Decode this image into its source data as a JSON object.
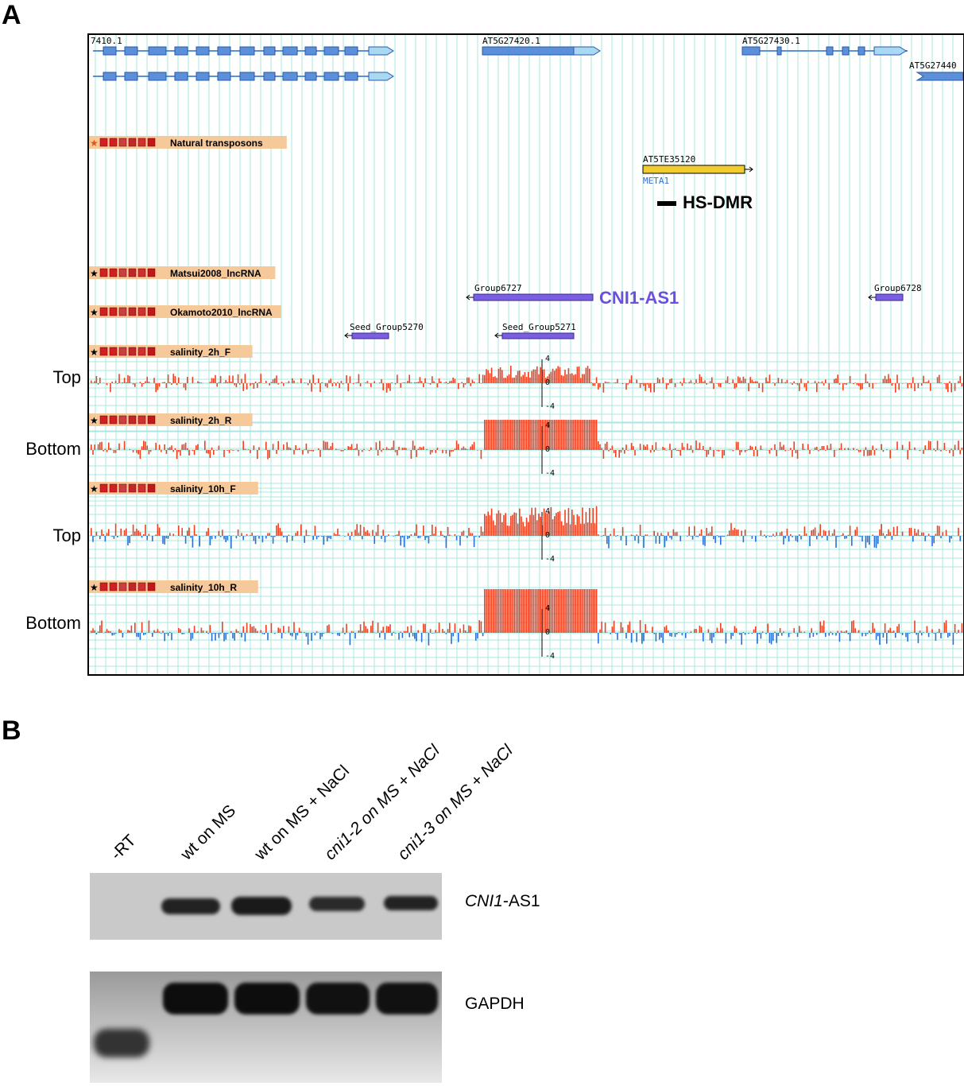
{
  "panelA": {
    "letter": "A",
    "genes": [
      "7410.1",
      "AT5G27420.1",
      "AT5G27430.1",
      "AT5G27440"
    ],
    "tracks": [
      {
        "label": "Natural transposons"
      },
      {
        "label": "Matsui2008_lncRNA"
      },
      {
        "label": "Okamoto2010_lncRNA"
      },
      {
        "label": "salinity_2h_F"
      },
      {
        "label": "salinity_2h_R"
      },
      {
        "label": "salinity_10h_F"
      },
      {
        "label": "salinity_10h_R"
      }
    ],
    "transposon": {
      "name": "AT5TE35120",
      "family": "META1"
    },
    "hs_dmr": "HS-DMR",
    "lncrna_groups": [
      "Group6727",
      "Group6728"
    ],
    "cni1_as1": "CNI1-AS1",
    "seed_groups": [
      "Seed_Group5270",
      "Seed_Group5271"
    ],
    "strand_labels": [
      "Top",
      "Bottom",
      "Top",
      "Bottom"
    ],
    "scale": {
      "max": "4",
      "zero": "0",
      "min": "-4"
    },
    "colors": {
      "gene": "#5b8fd9",
      "transposon": "#f2cc2e",
      "lncrna": "#7b5fe0",
      "pos_signal": "#f04020",
      "neg_signal": "#2a70d8",
      "grid": "#a8e8e0",
      "label_bg": "#f6c99a"
    }
  },
  "panelB": {
    "letter": "B",
    "lanes": [
      "-RT",
      "wt on MS",
      "wt on MS + NaCl",
      "cni1-2 on MS + NaCl",
      "cni1-3 on MS + NaCl"
    ],
    "gel1_label_italic": "CNI1",
    "gel1_label_rest": "-AS1",
    "gel2_label": "GAPDH"
  }
}
